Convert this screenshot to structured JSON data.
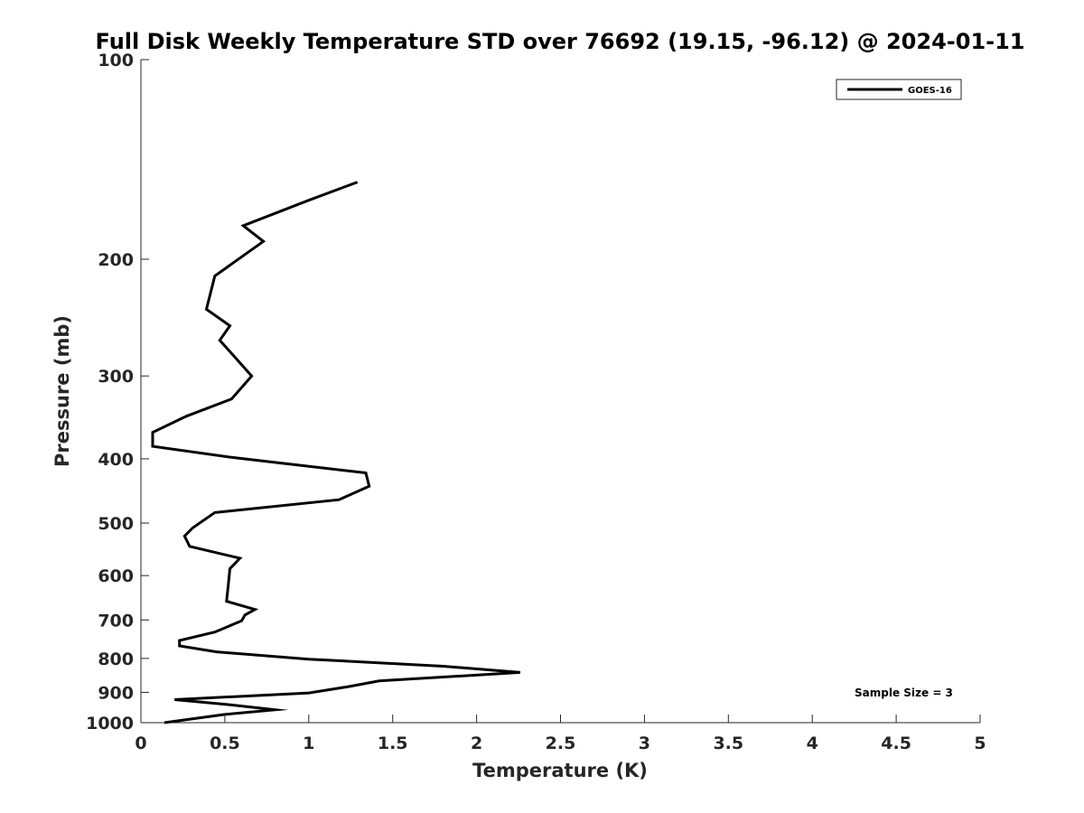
{
  "chart_data": {
    "type": "line",
    "title": "Full Disk Weekly Temperature STD over 76692 (19.15, -96.12) @ 2024-01-11",
    "xlabel": "Temperature (K)",
    "ylabel": "Pressure (mb)",
    "xlim": [
      0,
      5
    ],
    "ylim": [
      1000,
      100
    ],
    "y_scale": "log",
    "y_reversed": true,
    "grid": false,
    "legend_position": "top-right",
    "x_ticks": [
      "0",
      "0.5",
      "1",
      "1.5",
      "2",
      "2.5",
      "3",
      "3.5",
      "4",
      "4.5",
      "5"
    ],
    "y_ticks": [
      "100",
      "200",
      "300",
      "400",
      "500",
      "600",
      "700",
      "800",
      "900",
      "1000"
    ],
    "annotation": "Sample Size = 3",
    "series": [
      {
        "name": "GOES-16",
        "color": "#000000",
        "x": [
          1.29,
          1.0,
          0.61,
          0.73,
          0.44,
          0.39,
          0.53,
          0.47,
          0.66,
          0.54,
          0.27,
          0.07,
          0.07,
          0.54,
          1.34,
          1.36,
          1.18,
          0.44,
          0.31,
          0.26,
          0.29,
          0.59,
          0.53,
          0.52,
          0.51,
          0.68,
          0.62,
          0.6,
          0.44,
          0.23,
          0.23,
          0.45,
          1.0,
          1.8,
          2.26,
          1.42,
          1.24,
          1.0,
          0.2,
          0.5,
          0.8,
          0.5,
          0.14
        ],
        "y": [
          153,
          163,
          178,
          188,
          212,
          238,
          252,
          265,
          300,
          325,
          345,
          365,
          383,
          398,
          420,
          440,
          461,
          482,
          508,
          523,
          542,
          565,
          586,
          622,
          656,
          675,
          688,
          702,
          730,
          752,
          766,
          782,
          802,
          822,
          840,
          865,
          882,
          902,
          923,
          938,
          956,
          972,
          1000
        ]
      }
    ]
  }
}
